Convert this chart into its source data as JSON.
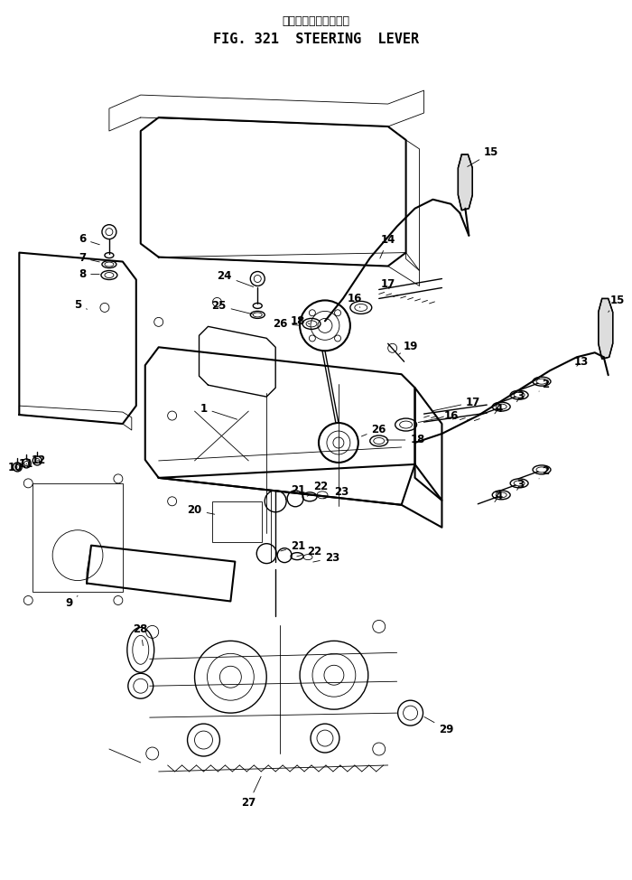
{
  "title_jp": "ステアリング　レバー",
  "title_en": "FIG. 321  STEERING  LEVER",
  "bg_color": "#ffffff",
  "line_color": "#000000",
  "fig_width": 7.0,
  "fig_height": 9.74
}
